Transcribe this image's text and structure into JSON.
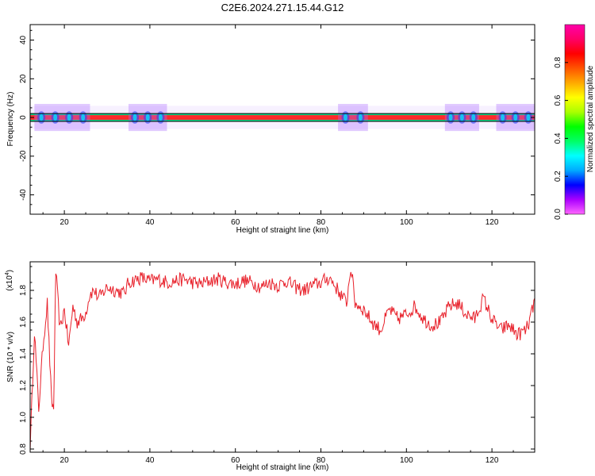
{
  "title": "C2E6.2024.271.15.44.G12",
  "chart_data": [
    {
      "type": "heatmap",
      "xlabel": "Height of straight line (km)",
      "ylabel": "Frequency (Hz)",
      "xlim": [
        12,
        130
      ],
      "ylim": [
        -50,
        48
      ],
      "x_ticks": [
        "20",
        "40",
        "60",
        "80",
        "100",
        "120"
      ],
      "y_ticks": [
        "40",
        "20",
        "0",
        "-20",
        "-40"
      ],
      "colorbar_label": "Normalized spectral amplitude",
      "colorbar_ticks": [
        "0.0",
        "0.2",
        "0.4",
        "0.6",
        "0.8"
      ],
      "colorbar_range": [
        0,
        1
      ],
      "colormap": [
        "#ff66ff",
        "#aa00ff",
        "#0000ff",
        "#00aaff",
        "#00ffff",
        "#00ff66",
        "#00ff00",
        "#aaff00",
        "#ffff00",
        "#ffaa00",
        "#ff5500",
        "#ff0000",
        "#ff0066",
        "#ff00aa"
      ],
      "band_center_hz": 0,
      "band_halfwidth_hz": 2,
      "bright_segments_km": [
        [
          13,
          26
        ],
        [
          35,
          44
        ],
        [
          84,
          91
        ],
        [
          109,
          117
        ],
        [
          121,
          130
        ]
      ]
    },
    {
      "type": "line",
      "xlabel": "Height of straight line (km)",
      "ylabel": "SNR (10 * v/v)",
      "multiplier_label": "(x10",
      "multiplier_exp": "4",
      "xlim": [
        12,
        130
      ],
      "ylim": [
        0.78,
        1.98
      ],
      "x_ticks": [
        "20",
        "40",
        "60",
        "80",
        "100",
        "120"
      ],
      "y_ticks": [
        "0.8",
        "1.0",
        "1.2",
        "1.4",
        "1.6",
        "1.8"
      ],
      "line_color": "#e8202a",
      "x": [
        12,
        13,
        14,
        15,
        16,
        17,
        17.5,
        18,
        19,
        20,
        21,
        22,
        23,
        24,
        25,
        26,
        27,
        28,
        30,
        32,
        34,
        35,
        36,
        38,
        40,
        42,
        44,
        46,
        48,
        50,
        52,
        54,
        56,
        58,
        60,
        62,
        64,
        66,
        68,
        70,
        72,
        74,
        76,
        78,
        80,
        82,
        84,
        86,
        87,
        88,
        90,
        92,
        94,
        96,
        98,
        100,
        102,
        104,
        106,
        108,
        110,
        112,
        114,
        116,
        118,
        120,
        122,
        124,
        126,
        128,
        129,
        130
      ],
      "y": [
        0.8,
        1.55,
        1.05,
        1.45,
        1.72,
        1.1,
        1.05,
        1.92,
        1.55,
        1.68,
        1.45,
        1.7,
        1.6,
        1.62,
        1.66,
        1.78,
        1.8,
        1.75,
        1.82,
        1.8,
        1.78,
        1.85,
        1.86,
        1.88,
        1.86,
        1.87,
        1.85,
        1.86,
        1.87,
        1.85,
        1.84,
        1.86,
        1.87,
        1.85,
        1.84,
        1.86,
        1.85,
        1.82,
        1.85,
        1.83,
        1.86,
        1.82,
        1.8,
        1.83,
        1.85,
        1.88,
        1.8,
        1.72,
        1.95,
        1.72,
        1.68,
        1.6,
        1.55,
        1.68,
        1.62,
        1.65,
        1.7,
        1.62,
        1.58,
        1.6,
        1.7,
        1.72,
        1.65,
        1.62,
        1.75,
        1.62,
        1.55,
        1.58,
        1.52,
        1.55,
        1.62,
        1.75
      ]
    }
  ]
}
